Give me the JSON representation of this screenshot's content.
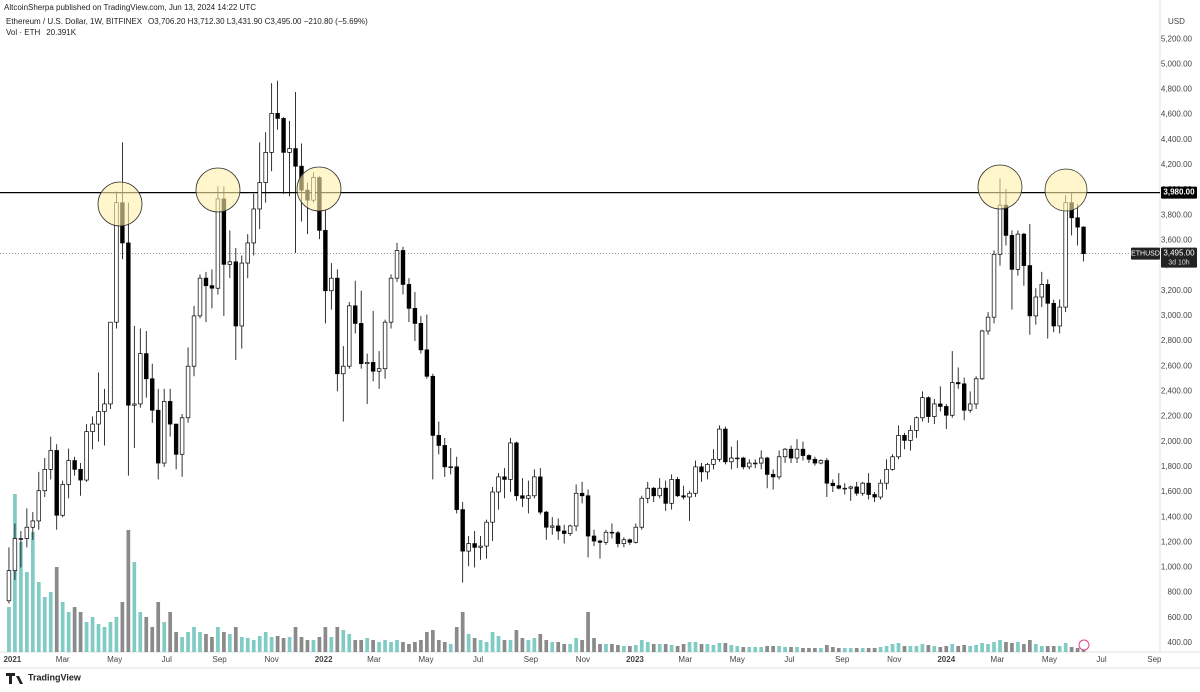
{
  "header": {
    "publisher": "AltcoinSherpa published on TradingView.com, Jun 13, 2024 14:22 UTC",
    "symbol": "Ethereum / U.S. Dollar, 1W, BITFINEX",
    "ohlc": "O3,706.20 H3,712.30 L3,431.90 C3,495.00 −210.80 (−5.69%)",
    "volume": "Vol · ETH",
    "volume_value": "20.391K"
  },
  "footer": {
    "brand": "TradingView"
  },
  "chart_data": {
    "type": "candlestick",
    "currency": "USD",
    "open": [
      735,
      975,
      1230,
      1230,
      1320,
      1370,
      1610,
      1780,
      1930,
      1415,
      1660,
      1850,
      1780,
      1695,
      2080,
      2140,
      2240,
      2300,
      2950,
      3900,
      3580,
      2290,
      2300,
      2700,
      2500,
      2250,
      1830,
      2320,
      2140,
      1900,
      2190,
      2600,
      3000,
      3300,
      3240,
      3220,
      3930,
      3410,
      3430,
      2920,
      3420,
      3580,
      3850,
      4060,
      4300,
      4610,
      4570,
      4300,
      4330,
      4190,
      4000,
      3920,
      4100,
      3680,
      3200,
      3300,
      2540,
      2600,
      3080,
      2940,
      2620,
      2630,
      2560,
      2580,
      2950,
      3300,
      3520,
      3250,
      3060,
      2940,
      2730,
      2520,
      2050,
      1970,
      1800,
      1800,
      1460,
      1130,
      1190,
      1160,
      1170,
      1360,
      1600,
      1720,
      1700,
      1990,
      1570,
      1550,
      1570,
      1720,
      1440,
      1320,
      1330,
      1290,
      1270,
      1330,
      1590,
      1570,
      1250,
      1210,
      1200,
      1280,
      1275,
      1190,
      1220,
      1200,
      1320,
      1550,
      1630,
      1570,
      1630,
      1510,
      1700,
      1570,
      1560,
      1590,
      1800,
      1760,
      1820,
      1860,
      2100,
      1840,
      1870,
      1870,
      1800,
      1830,
      1830,
      1870,
      1740,
      1720,
      1880,
      1940,
      1870,
      1940,
      1890,
      1860,
      1830,
      1850,
      1670,
      1650,
      1630,
      1630,
      1640,
      1590,
      1670,
      1580,
      1560,
      1670,
      1780,
      1880,
      2050,
      2010,
      2090,
      2190,
      2350,
      2200,
      2300,
      2280,
      2210,
      2470,
      2460,
      2250,
      2300,
      2500,
      2880,
      2990,
      3490,
      3880,
      3640,
      3370,
      3650,
      3400,
      3000,
      3150,
      3250,
      3100,
      2920,
      3070,
      3900,
      3780,
      3706.2
    ],
    "high": [
      1160,
      1350,
      1290,
      1470,
      1440,
      1760,
      1870,
      2040,
      1980,
      1690,
      1945,
      1880,
      1830,
      2140,
      2200,
      2550,
      2420,
      2950,
      3990,
      4380,
      3900,
      2920,
      2900,
      2880,
      2620,
      2420,
      2420,
      2420,
      2140,
      2220,
      2750,
      3080,
      3330,
      3350,
      3370,
      4030,
      4030,
      3680,
      3540,
      3480,
      3650,
      3970,
      4380,
      4460,
      4850,
      4870,
      4580,
      4550,
      4780,
      4370,
      4060,
      4140,
      4110,
      3840,
      3420,
      3370,
      2760,
      3110,
      3280,
      3200,
      2700,
      3040,
      2720,
      2970,
      3330,
      3580,
      3550,
      3300,
      3190,
      3000,
      3010,
      2540,
      2160,
      2030,
      1950,
      1880,
      1520,
      1250,
      1290,
      1250,
      1380,
      1640,
      1750,
      1790,
      2030,
      2000,
      1710,
      1690,
      1780,
      1790,
      1450,
      1400,
      1390,
      1340,
      1340,
      1660,
      1680,
      1620,
      1300,
      1220,
      1300,
      1350,
      1290,
      1240,
      1230,
      1350,
      1570,
      1680,
      1640,
      1710,
      1690,
      1740,
      1720,
      1650,
      1610,
      1850,
      1830,
      1830,
      1940,
      2130,
      2120,
      1960,
      2010,
      1880,
      1860,
      1860,
      1930,
      1880,
      1780,
      1930,
      1950,
      1970,
      2020,
      2000,
      1900,
      1880,
      1860,
      1870,
      1700,
      1750,
      1670,
      1650,
      1680,
      1680,
      1750,
      1600,
      1700,
      1860,
      1900,
      2130,
      2070,
      2130,
      2200,
      2400,
      2360,
      2340,
      2440,
      2300,
      2720,
      2590,
      2510,
      2400,
      2520,
      2890,
      3030,
      3520,
      4090,
      4010,
      3680,
      3680,
      3660,
      3730,
      3220,
      3350,
      3290,
      3130,
      3130,
      3960,
      3980,
      3890,
      3712.3
    ],
    "low": [
      715,
      900,
      1000,
      1160,
      1220,
      1300,
      1560,
      1700,
      1300,
      1400,
      1550,
      1730,
      1570,
      1680,
      1940,
      2000,
      1970,
      2260,
      2900,
      3450,
      1730,
      1950,
      2270,
      2350,
      2150,
      1700,
      1800,
      2040,
      1780,
      1720,
      2150,
      2520,
      2980,
      2950,
      3060,
      3170,
      3000,
      3300,
      2650,
      2740,
      3300,
      3480,
      3690,
      3900,
      4150,
      4480,
      3970,
      3950,
      3500,
      3750,
      3650,
      3900,
      3610,
      2940,
      3050,
      2400,
      2160,
      2580,
      2860,
      2580,
      2300,
      2480,
      2420,
      2500,
      2900,
      3270,
      3170,
      2950,
      2800,
      2700,
      2500,
      1700,
      1900,
      1720,
      1740,
      1430,
      880,
      1010,
      1000,
      1060,
      1070,
      1210,
      1460,
      1550,
      1600,
      1530,
      1480,
      1430,
      1550,
      1420,
      1220,
      1260,
      1220,
      1190,
      1250,
      1290,
      1510,
      1080,
      1170,
      1070,
      1180,
      1230,
      1160,
      1160,
      1180,
      1190,
      1300,
      1510,
      1520,
      1550,
      1450,
      1460,
      1560,
      1540,
      1370,
      1560,
      1680,
      1700,
      1780,
      1840,
      1820,
      1780,
      1790,
      1780,
      1780,
      1790,
      1780,
      1630,
      1620,
      1700,
      1830,
      1830,
      1830,
      1850,
      1830,
      1810,
      1820,
      1560,
      1600,
      1620,
      1580,
      1530,
      1570,
      1570,
      1540,
      1520,
      1540,
      1620,
      1770,
      1860,
      1940,
      1930,
      2030,
      2160,
      2150,
      2140,
      2240,
      2100,
      2190,
      2420,
      2170,
      2230,
      2260,
      2490,
      2850,
      2940,
      3400,
      3560,
      3050,
      3320,
      3240,
      2850,
      2930,
      3070,
      2820,
      2870,
      2860,
      3030,
      3640,
      3560,
      3431.9
    ],
    "close": [
      975,
      1230,
      1230,
      1320,
      1370,
      1610,
      1780,
      1930,
      1415,
      1660,
      1850,
      1780,
      1695,
      2080,
      2140,
      2240,
      2300,
      2950,
      3900,
      3580,
      2290,
      2300,
      2700,
      2500,
      2250,
      1830,
      2320,
      2140,
      1900,
      2190,
      2600,
      3000,
      3300,
      3240,
      3220,
      3930,
      3410,
      3430,
      2920,
      3420,
      3580,
      3850,
      4060,
      4300,
      4610,
      4570,
      4300,
      4330,
      4190,
      4000,
      3920,
      4100,
      3680,
      3200,
      3300,
      2540,
      2600,
      3080,
      2940,
      2620,
      2630,
      2560,
      2580,
      2950,
      3300,
      3520,
      3250,
      3060,
      2940,
      2730,
      2520,
      2050,
      1970,
      1800,
      1800,
      1460,
      1130,
      1190,
      1160,
      1170,
      1360,
      1600,
      1720,
      1700,
      1990,
      1570,
      1550,
      1570,
      1720,
      1440,
      1320,
      1330,
      1290,
      1270,
      1330,
      1590,
      1570,
      1250,
      1210,
      1200,
      1280,
      1275,
      1190,
      1220,
      1200,
      1320,
      1550,
      1630,
      1570,
      1630,
      1510,
      1700,
      1570,
      1560,
      1590,
      1800,
      1760,
      1820,
      1860,
      2100,
      1840,
      1870,
      1870,
      1800,
      1830,
      1830,
      1870,
      1740,
      1720,
      1880,
      1940,
      1870,
      1940,
      1890,
      1860,
      1830,
      1850,
      1670,
      1650,
      1630,
      1630,
      1640,
      1590,
      1670,
      1580,
      1560,
      1670,
      1780,
      1880,
      2050,
      2010,
      2090,
      2190,
      2350,
      2200,
      2300,
      2280,
      2210,
      2470,
      2460,
      2250,
      2300,
      2500,
      2880,
      2990,
      3490,
      3880,
      3640,
      3370,
      3650,
      3400,
      3000,
      3150,
      3250,
      3100,
      2920,
      3070,
      3900,
      3780,
      3706,
      3495
    ],
    "volume": [
      450000,
      1580000,
      1100000,
      800000,
      1200000,
      700000,
      550000,
      600000,
      850000,
      500000,
      400000,
      450000,
      400000,
      300000,
      350000,
      280000,
      250000,
      300000,
      350000,
      500000,
      1220000,
      900000,
      400000,
      350000,
      250000,
      500000,
      300000,
      400000,
      200000,
      150000,
      200000,
      250000,
      200000,
      180000,
      150000,
      250000,
      200000,
      180000,
      250000,
      150000,
      140000,
      120000,
      160000,
      200000,
      150000,
      160000,
      140000,
      150000,
      250000,
      150000,
      120000,
      120000,
      150000,
      250000,
      150000,
      250000,
      220000,
      180000,
      120000,
      120000,
      140000,
      120000,
      100000,
      120000,
      100000,
      120000,
      100000,
      80000,
      100000,
      120000,
      200000,
      220000,
      120000,
      100000,
      80000,
      250000,
      400000,
      180000,
      140000,
      120000,
      100000,
      200000,
      160000,
      120000,
      120000,
      220000,
      140000,
      120000,
      140000,
      180000,
      120000,
      100000,
      100000,
      80000,
      80000,
      140000,
      120000,
      400000,
      140000,
      80000,
      80000,
      80000,
      70000,
      60000,
      60000,
      70000,
      120000,
      100000,
      80000,
      80000,
      80000,
      70000,
      60000,
      80000,
      100000,
      100000,
      80000,
      80000,
      70000,
      90000,
      90000,
      70000,
      60000,
      50000,
      50000,
      50000,
      50000,
      60000,
      60000,
      60000,
      50000,
      50000,
      50000,
      40000,
      40000,
      40000,
      40000,
      70000,
      50000,
      40000,
      40000,
      40000,
      40000,
      40000,
      40000,
      40000,
      50000,
      60000,
      80000,
      90000,
      60000,
      60000,
      60000,
      80000,
      70000,
      60000,
      50000,
      60000,
      80000,
      60000,
      70000,
      60000,
      70000,
      90000,
      80000,
      100000,
      120000,
      100000,
      90000,
      100000,
      80000,
      120000,
      80000,
      60000,
      60000,
      60000,
      60000,
      90000,
      50000,
      40000,
      20391
    ],
    "up_color": "#ffffff",
    "down_color": "#000000",
    "wick_color": "#000000",
    "volume_up_color": "#80cbc4",
    "volume_down_color": "#8a8a8a",
    "grid": false,
    "ylim": [
      320,
      5400
    ],
    "yticks": [
      {
        "value": 400,
        "label": "400.00"
      },
      {
        "value": 600,
        "label": "600.00"
      },
      {
        "value": 800,
        "label": "800.00"
      },
      {
        "value": 1000,
        "label": "1,000.00"
      },
      {
        "value": 1200,
        "label": "1,200.00"
      },
      {
        "value": 1400,
        "label": "1,400.00"
      },
      {
        "value": 1600,
        "label": "1,600.00"
      },
      {
        "value": 1800,
        "label": "1,800.00"
      },
      {
        "value": 2000,
        "label": "2,000.00"
      },
      {
        "value": 2200,
        "label": "2,200.00"
      },
      {
        "value": 2400,
        "label": "2,400.00"
      },
      {
        "value": 2600,
        "label": "2,600.00"
      },
      {
        "value": 2800,
        "label": "2,800.00"
      },
      {
        "value": 3000,
        "label": "3,000.00"
      },
      {
        "value": 3200,
        "label": "3,200.00"
      },
      {
        "value": 3400,
        "label": "3,400.00"
      },
      {
        "value": 3600,
        "label": "3,600.00"
      },
      {
        "value": 3800,
        "label": "3,800.00"
      },
      {
        "value": 4000,
        "label": "4,000.00"
      },
      {
        "value": 4200,
        "label": "4,200.00"
      },
      {
        "value": 4400,
        "label": "4,400.00"
      },
      {
        "value": 4600,
        "label": "4,600.00"
      },
      {
        "value": 4800,
        "label": "4,800.00"
      },
      {
        "value": 5000,
        "label": "5,000.00"
      },
      {
        "value": 5200,
        "label": "5,200.00"
      }
    ],
    "xlim": [
      -1.5,
      192.8
    ],
    "xticks": [
      {
        "value": 0.57,
        "label": "2021"
      },
      {
        "value": 9,
        "label": "Mar"
      },
      {
        "value": 17.71,
        "label": "May"
      },
      {
        "value": 26.43,
        "label": "Jul"
      },
      {
        "value": 35.29,
        "label": "Sep"
      },
      {
        "value": 44,
        "label": "Nov"
      },
      {
        "value": 52.71,
        "label": "2022"
      },
      {
        "value": 61.14,
        "label": "Mar"
      },
      {
        "value": 69.86,
        "label": "May"
      },
      {
        "value": 78.57,
        "label": "Jul"
      },
      {
        "value": 87.43,
        "label": "Sep"
      },
      {
        "value": 96.14,
        "label": "Nov"
      },
      {
        "value": 104.86,
        "label": "2023"
      },
      {
        "value": 113.29,
        "label": "Mar"
      },
      {
        "value": 122,
        "label": "May"
      },
      {
        "value": 130.71,
        "label": "Jul"
      },
      {
        "value": 139.57,
        "label": "Sep"
      },
      {
        "value": 148.29,
        "label": "Nov"
      },
      {
        "value": 157,
        "label": "2024"
      },
      {
        "value": 165.57,
        "label": "Mar"
      },
      {
        "value": 174.29,
        "label": "May"
      },
      {
        "value": 183,
        "label": "Jul"
      },
      {
        "value": 191.86,
        "label": "Sep"
      }
    ],
    "levels": [
      {
        "value": 3980,
        "label": "3,980.00"
      }
    ],
    "last_price": {
      "value": 3495,
      "label": "3,495.00",
      "symbol": "ETHUSD",
      "countdown": "3d 10h"
    }
  }
}
